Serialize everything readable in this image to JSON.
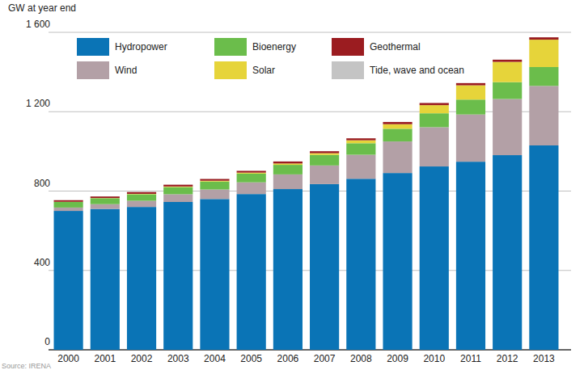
{
  "chart_data": {
    "type": "bar",
    "stacked": true,
    "grid": true,
    "legend": "top-left",
    "ylabel": "GW at year end",
    "source": "Source: IRENA",
    "categories": [
      "2000",
      "2001",
      "2002",
      "2003",
      "2004",
      "2005",
      "2006",
      "2007",
      "2008",
      "2009",
      "2010",
      "2011",
      "2012",
      "2013"
    ],
    "ylim": [
      0,
      1600
    ],
    "yticks": [
      0,
      400,
      800,
      {
        "value": 1200,
        "label": "1 200"
      },
      {
        "value": 1600,
        "label": "1 600"
      }
    ],
    "series": [
      {
        "name": "Hydropower",
        "color": "#0a74b6",
        "values": [
          700,
          710,
          720,
          745,
          760,
          785,
          810,
          835,
          862,
          891,
          924,
          948,
          981,
          1030
        ]
      },
      {
        "name": "Wind",
        "color": "#b3a0a6",
        "values": [
          17,
          24,
          31,
          39,
          48,
          59,
          74,
          94,
          121,
          159,
          198,
          238,
          283,
          300
        ]
      },
      {
        "name": "Bioenergy",
        "color": "#6bbd4b",
        "values": [
          28,
          30,
          33,
          36,
          40,
          44,
          48,
          53,
          58,
          64,
          70,
          75,
          85,
          95
        ]
      },
      {
        "name": "Solar",
        "color": "#e6d43a",
        "values": [
          1,
          1,
          2,
          3,
          4,
          5,
          7,
          9,
          15,
          23,
          41,
          72,
          102,
          138
        ]
      },
      {
        "name": "Geothermal",
        "color": "#9b1c20",
        "values": [
          8,
          8,
          9,
          9,
          9,
          9,
          10,
          10,
          10,
          11,
          11,
          11,
          11,
          12
        ]
      },
      {
        "name": "Tide, wave and ocean",
        "color": "#c4c4c4",
        "values": [
          0.5,
          0.5,
          0.5,
          0.5,
          0.5,
          0.5,
          0.5,
          0.5,
          0.5,
          0.5,
          0.5,
          0.5,
          0.5,
          0.5
        ]
      }
    ]
  }
}
